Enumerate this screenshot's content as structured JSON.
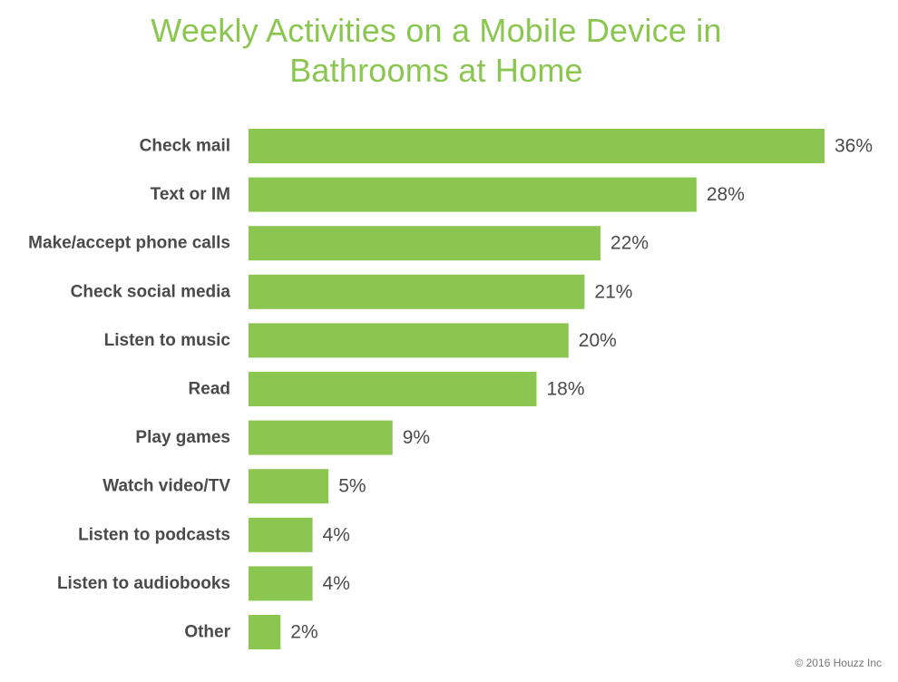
{
  "chart_data": {
    "type": "bar",
    "orientation": "horizontal",
    "title_lines": [
      "Weekly Activities on a Mobile Device in",
      "Bathrooms at Home"
    ],
    "xlabel": "",
    "ylabel": "",
    "categories": [
      "Check mail",
      "Text or IM",
      "Make/accept phone calls",
      "Check social media",
      "Listen to music",
      "Read",
      "Play games",
      "Watch video/TV",
      "Listen to podcasts",
      "Listen to audiobooks",
      "Other"
    ],
    "values": [
      36,
      28,
      22,
      21,
      20,
      18,
      9,
      5,
      4,
      4,
      2
    ],
    "data_labels": [
      "36%",
      "28%",
      "22%",
      "21%",
      "20%",
      "18%",
      "9%",
      "5%",
      "4%",
      "4%",
      "2%"
    ],
    "unit": "%",
    "xlim": [
      0,
      36
    ],
    "grid": false,
    "legend": "none",
    "bar_color": "#8bc651",
    "title_color": "#8bc651"
  },
  "footer": {
    "copyright": "© 2016 Houzz Inc"
  }
}
